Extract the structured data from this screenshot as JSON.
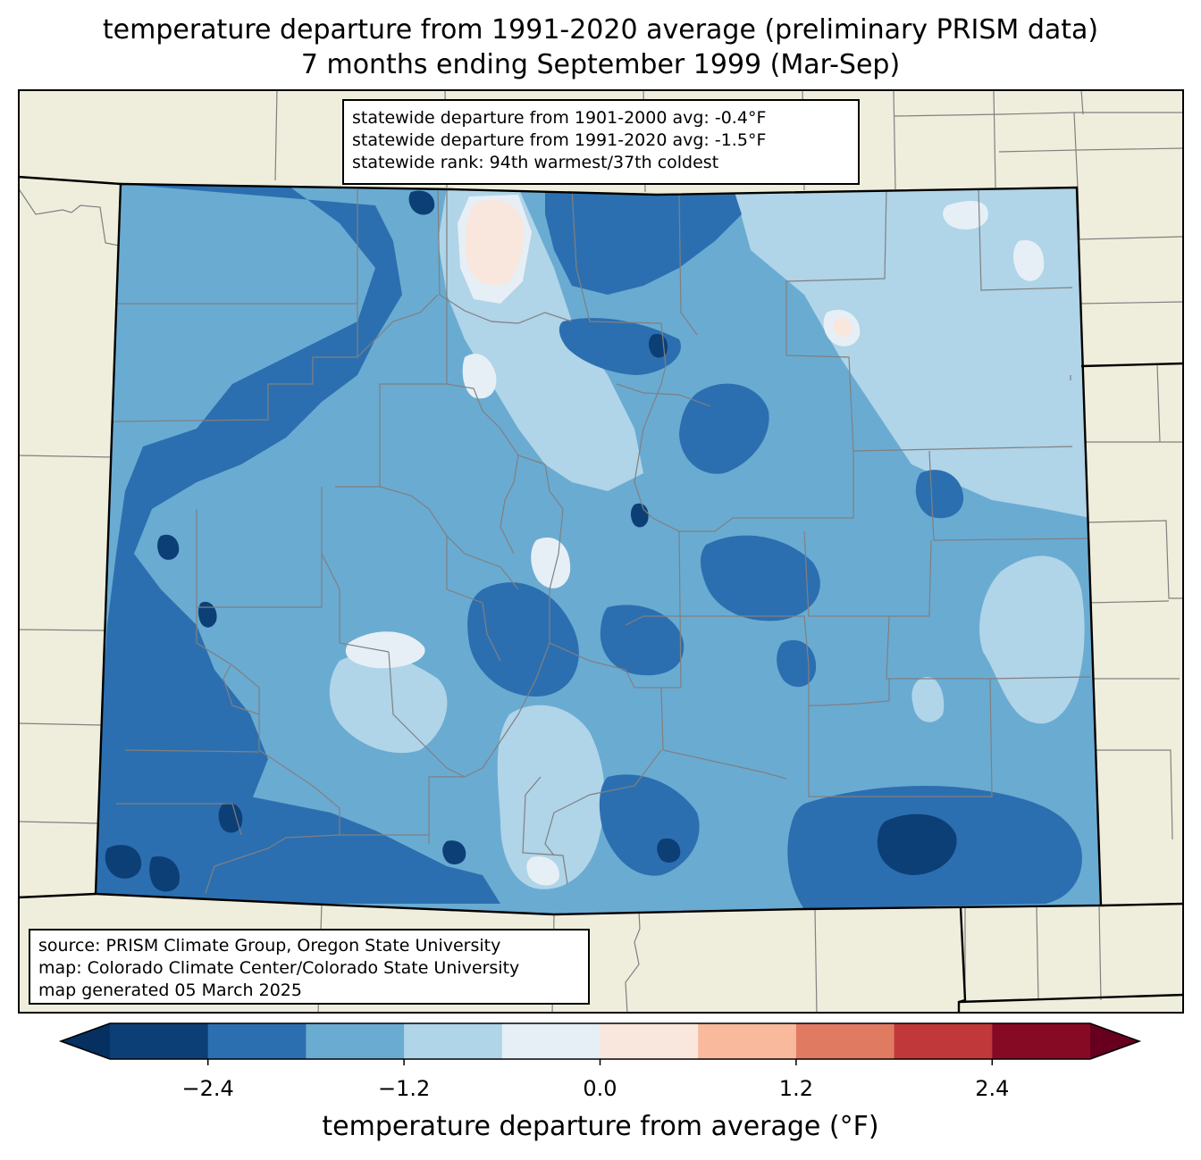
{
  "title": {
    "line1": "temperature departure from 1991-2020 average (preliminary PRISM data)",
    "line2": "7 months ending September 1999 (Mar-Sep)"
  },
  "stats_box": {
    "line1": "statewide departure from 1901-2000 avg: -0.4°F",
    "line2": "statewide departure from 1991-2020 avg: -1.5°F",
    "line3": "statewide rank: 94th warmest/37th coldest"
  },
  "source_box": {
    "line1": "source: PRISM Climate Group, Oregon State University",
    "line2": "map: Colorado Climate Center/Colorado State University",
    "line3": "map generated 05 March 2025"
  },
  "colors": {
    "land": "#efeedc",
    "state_border": "#000000",
    "county_border": "#808080",
    "bins": [
      "#0d3f77",
      "#2c6fb0",
      "#6aabd2",
      "#b0d4e8",
      "#e6eff5",
      "#f9e6dd",
      "#f8b99c",
      "#e07b62",
      "#c0383a",
      "#870a24"
    ],
    "under": "#053061",
    "over": "#67001f"
  },
  "legend": {
    "label": "temperature departure from average (°F)",
    "min": -3.0,
    "max": 3.0,
    "step": 0.6,
    "ticks": [
      "−2.4",
      "−1.2",
      "0.0",
      "1.2",
      "2.4"
    ],
    "tick_values": [
      -2.4,
      -1.2,
      0.0,
      1.2,
      2.4
    ]
  },
  "map": {
    "region": "Colorado",
    "field_levels": [
      -2.7,
      -2.1,
      -1.5,
      -0.9,
      -0.3,
      0.3
    ]
  }
}
